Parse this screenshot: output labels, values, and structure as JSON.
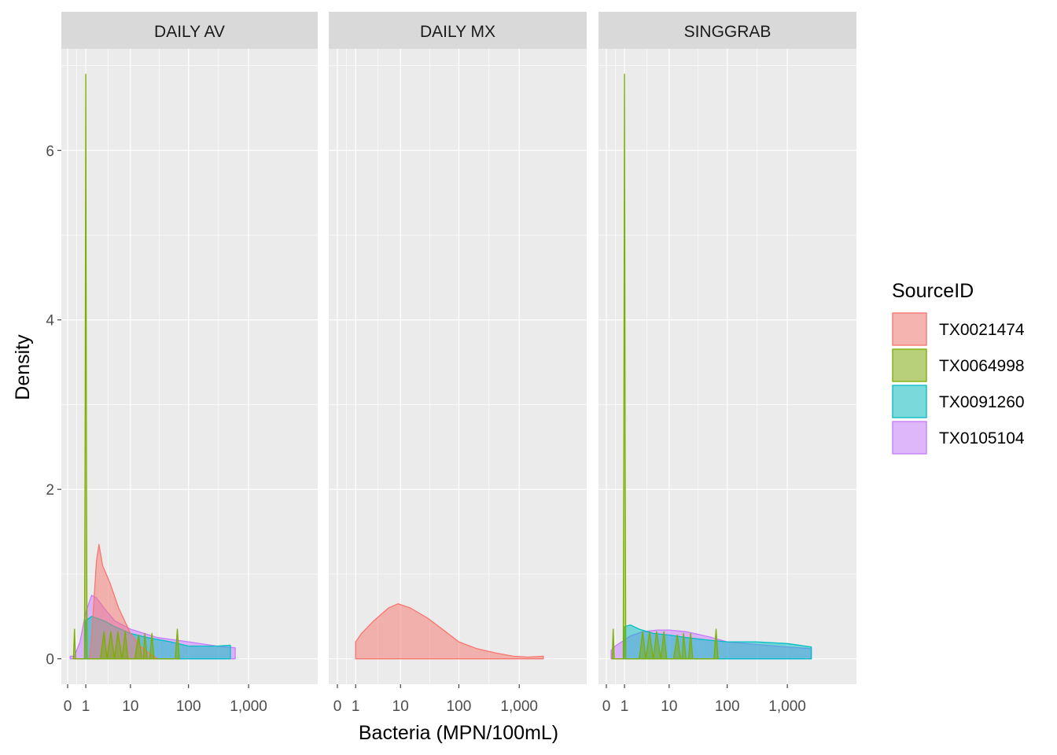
{
  "chart_data": {
    "type": "area",
    "title": "",
    "xlabel": "Bacteria (MPN/100mL)",
    "ylabel": "Density",
    "x_scale": "pseudo-log",
    "x_ticks": [
      "0",
      "1",
      "10",
      "100",
      "1,000"
    ],
    "x_tick_values": [
      0,
      1,
      10,
      100,
      1000
    ],
    "y_ticks": [
      "0",
      "2",
      "4",
      "6"
    ],
    "y_tick_values": [
      0,
      2,
      4,
      6
    ],
    "ylim": [
      -0.3,
      7.2
    ],
    "grid": true,
    "legend": {
      "title": "SourceID",
      "placement": "right",
      "entries": [
        {
          "name": "TX0021474",
          "line": "#F8766D",
          "fill": "#F8766D"
        },
        {
          "name": "TX0064998",
          "line": "#7CAE00",
          "fill": "#7CAE00"
        },
        {
          "name": "TX0091260",
          "line": "#00BFC4",
          "fill": "#00BFC4"
        },
        {
          "name": "TX0105104",
          "line": "#C77CFF",
          "fill": "#C77CFF"
        }
      ]
    },
    "panels": [
      {
        "strip": "DAILY AV",
        "series": [
          {
            "name": "TX0105104",
            "x": [
              0.1,
              0.3,
              0.6,
              1.0,
              1.5,
              2.0,
              3.0,
              5.0,
              10,
              30,
              100,
              300,
              600
            ],
            "y": [
              0.03,
              0.03,
              0.2,
              0.55,
              0.75,
              0.72,
              0.6,
              0.45,
              0.35,
              0.25,
              0.2,
              0.15,
              0.13
            ]
          },
          {
            "name": "TX0091260",
            "x": [
              0.9,
              1.0,
              1.5,
              3.0,
              5.0,
              10,
              20,
              50,
              100,
              300,
              500
            ],
            "y": [
              0.0,
              0.45,
              0.5,
              0.45,
              0.38,
              0.3,
              0.25,
              0.2,
              0.15,
              0.15,
              0.16
            ]
          },
          {
            "name": "TX0021474",
            "x": [
              1.3,
              1.5,
              2.0,
              2.3,
              2.8,
              4.0,
              6.0,
              10,
              15,
              20,
              30
            ],
            "y": [
              0.0,
              0.25,
              1.15,
              1.35,
              1.1,
              0.9,
              0.6,
              0.3,
              0.15,
              0.08,
              0.0
            ]
          },
          {
            "name": "TX0064998",
            "x": [
              0.25,
              0.3,
              0.35,
              0.9,
              0.95,
              1.0,
              1.05,
              1.1,
              2.5,
              3.0,
              3.5,
              4.2,
              5.0,
              5.8,
              7.0,
              8.0,
              9.0,
              12,
              14,
              16,
              17,
              18,
              20,
              22,
              24,
              26,
              60,
              65,
              70
            ],
            "y": [
              0.0,
              0.35,
              0.0,
              0.0,
              2.5,
              6.9,
              2.5,
              0.0,
              0.0,
              0.32,
              0.0,
              0.32,
              0.0,
              0.32,
              0.0,
              0.32,
              0.0,
              0.0,
              0.28,
              0.0,
              0.0,
              0.3,
              0.0,
              0.0,
              0.3,
              0.0,
              0.0,
              0.35,
              0.0
            ]
          }
        ]
      },
      {
        "strip": "DAILY MX",
        "series": [
          {
            "name": "TX0021474",
            "x": [
              1.0,
              1.5,
              3.0,
              6.0,
              9.0,
              15,
              30,
              60,
              100,
              200,
              400,
              800,
              1400,
              2500
            ],
            "y": [
              0.2,
              0.3,
              0.45,
              0.6,
              0.65,
              0.6,
              0.48,
              0.32,
              0.2,
              0.12,
              0.07,
              0.03,
              0.02,
              0.03
            ]
          }
        ]
      },
      {
        "strip": "SINGGRAB",
        "series": [
          {
            "name": "TX0105104",
            "x": [
              0.2,
              0.4,
              0.8,
              1.5,
              3.0,
              6.0,
              10,
              20,
              50,
              100,
              300,
              1000,
              2500
            ],
            "y": [
              0.1,
              0.15,
              0.2,
              0.27,
              0.32,
              0.34,
              0.34,
              0.32,
              0.26,
              0.2,
              0.17,
              0.14,
              0.12
            ]
          },
          {
            "name": "TX0091260",
            "x": [
              0.95,
              1.0,
              1.5,
              2.5,
              5.0,
              10,
              20,
              50,
              100,
              300,
              1000,
              2500
            ],
            "y": [
              0.0,
              0.38,
              0.4,
              0.35,
              0.3,
              0.28,
              0.25,
              0.22,
              0.2,
              0.2,
              0.18,
              0.14
            ]
          },
          {
            "name": "TX0064998",
            "x": [
              0.25,
              0.3,
              0.35,
              0.9,
              0.95,
              1.0,
              1.05,
              1.1,
              2.5,
              3.0,
              3.5,
              4.2,
              5.0,
              5.8,
              7.0,
              8.0,
              9.0,
              12,
              14,
              16,
              17,
              18,
              20,
              22,
              24,
              26,
              60,
              65,
              70
            ],
            "y": [
              0.0,
              0.35,
              0.0,
              0.0,
              2.5,
              6.9,
              2.5,
              0.0,
              0.0,
              0.32,
              0.0,
              0.32,
              0.0,
              0.32,
              0.0,
              0.32,
              0.0,
              0.0,
              0.28,
              0.0,
              0.0,
              0.3,
              0.0,
              0.0,
              0.3,
              0.0,
              0.0,
              0.35,
              0.0
            ]
          }
        ]
      }
    ]
  }
}
